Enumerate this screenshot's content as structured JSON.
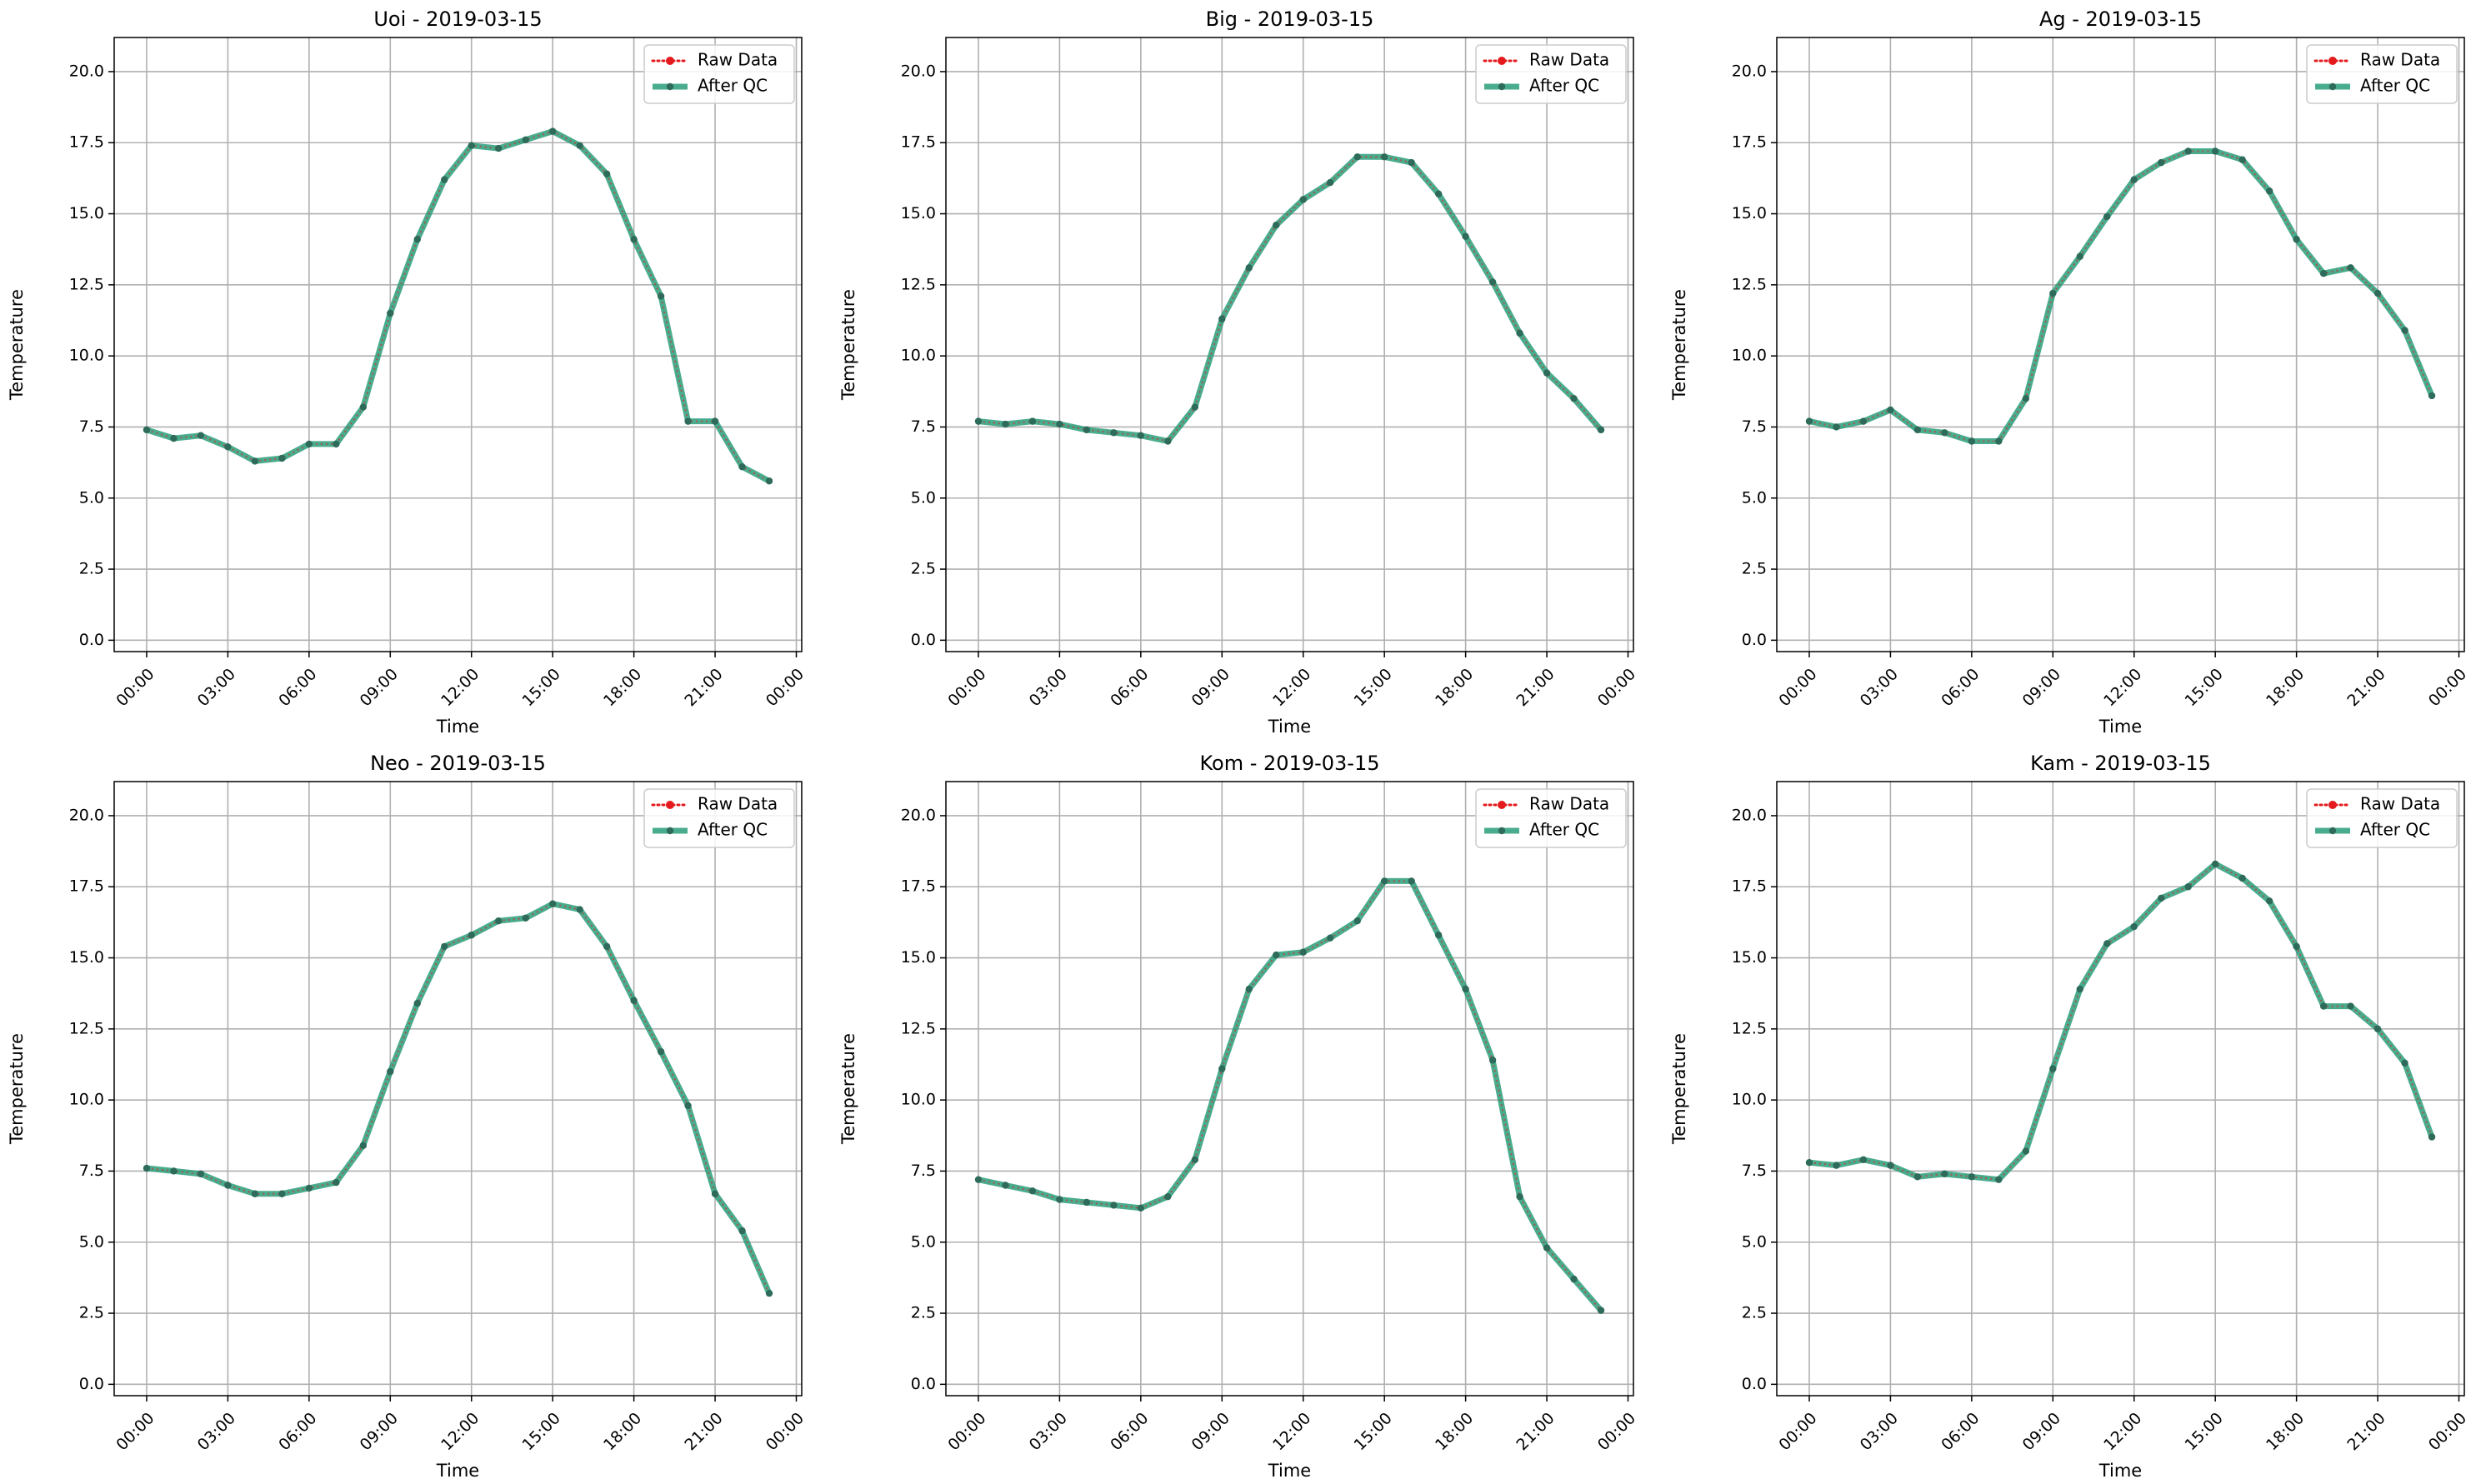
{
  "figure": {
    "x_label": "Time",
    "y_label": "Temperature",
    "legend": [
      "Raw Data",
      "After QC"
    ]
  },
  "colors": {
    "raw": "#e41a1c",
    "qc": "#2a9d7a",
    "marker": "#2e6b5a",
    "grid": "#b0b0b0"
  },
  "chart_data": [
    {
      "type": "line",
      "title": "Uoi - 2019-03-15",
      "xlabel": "Time",
      "ylabel": "Temperature",
      "xlim": [
        -1.2,
        24.2
      ],
      "ylim": [
        -0.4,
        21.2
      ],
      "x_ticks": [
        "00:00",
        "03:00",
        "06:00",
        "09:00",
        "12:00",
        "15:00",
        "18:00",
        "21:00",
        "00:00"
      ],
      "y_ticks": [
        "0.0",
        "2.5",
        "5.0",
        "7.5",
        "10.0",
        "12.5",
        "15.0",
        "17.5",
        "20.0"
      ],
      "legend_position": "top-right",
      "grid": true,
      "x": [
        "00:00",
        "01:00",
        "02:00",
        "03:00",
        "04:00",
        "05:00",
        "06:00",
        "07:00",
        "08:00",
        "09:00",
        "10:00",
        "11:00",
        "12:00",
        "13:00",
        "14:00",
        "15:00",
        "16:00",
        "17:00",
        "18:00",
        "19:00",
        "20:00",
        "21:00",
        "22:00",
        "23:00"
      ],
      "series": [
        {
          "name": "Raw Data",
          "values": [
            7.4,
            7.1,
            7.2,
            6.8,
            6.3,
            6.4,
            6.9,
            6.9,
            8.2,
            11.5,
            14.1,
            16.2,
            17.4,
            17.3,
            17.6,
            17.9,
            17.4,
            16.4,
            14.1,
            12.1,
            7.7,
            7.7,
            6.1,
            5.6
          ]
        },
        {
          "name": "After QC",
          "values": [
            7.4,
            7.1,
            7.2,
            6.8,
            6.3,
            6.4,
            6.9,
            6.9,
            8.2,
            11.5,
            14.1,
            16.2,
            17.4,
            17.3,
            17.6,
            17.9,
            17.4,
            16.4,
            14.1,
            12.1,
            7.7,
            7.7,
            6.1,
            5.6
          ]
        }
      ]
    },
    {
      "type": "line",
      "title": "Big - 2019-03-15",
      "xlabel": "Time",
      "ylabel": "Temperature",
      "xlim": [
        -1.2,
        24.2
      ],
      "ylim": [
        -0.4,
        21.2
      ],
      "x_ticks": [
        "00:00",
        "03:00",
        "06:00",
        "09:00",
        "12:00",
        "15:00",
        "18:00",
        "21:00",
        "00:00"
      ],
      "y_ticks": [
        "0.0",
        "2.5",
        "5.0",
        "7.5",
        "10.0",
        "12.5",
        "15.0",
        "17.5",
        "20.0"
      ],
      "legend_position": "top-right",
      "grid": true,
      "x": [
        "00:00",
        "01:00",
        "02:00",
        "03:00",
        "04:00",
        "05:00",
        "06:00",
        "07:00",
        "08:00",
        "09:00",
        "10:00",
        "11:00",
        "12:00",
        "13:00",
        "14:00",
        "15:00",
        "16:00",
        "17:00",
        "18:00",
        "19:00",
        "20:00",
        "21:00",
        "22:00",
        "23:00"
      ],
      "series": [
        {
          "name": "Raw Data",
          "values": [
            7.7,
            7.6,
            7.7,
            7.6,
            7.4,
            7.3,
            7.2,
            7.0,
            8.2,
            11.3,
            13.1,
            14.6,
            15.5,
            16.1,
            17.0,
            17.0,
            16.8,
            15.7,
            14.2,
            12.6,
            10.8,
            9.4,
            8.5,
            7.4
          ]
        },
        {
          "name": "After QC",
          "values": [
            7.7,
            7.6,
            7.7,
            7.6,
            7.4,
            7.3,
            7.2,
            7.0,
            8.2,
            11.3,
            13.1,
            14.6,
            15.5,
            16.1,
            17.0,
            17.0,
            16.8,
            15.7,
            14.2,
            12.6,
            10.8,
            9.4,
            8.5,
            7.4
          ]
        }
      ]
    },
    {
      "type": "line",
      "title": "Ag - 2019-03-15",
      "xlabel": "Time",
      "ylabel": "Temperature",
      "xlim": [
        -1.2,
        24.2
      ],
      "ylim": [
        -0.4,
        21.2
      ],
      "x_ticks": [
        "00:00",
        "03:00",
        "06:00",
        "09:00",
        "12:00",
        "15:00",
        "18:00",
        "21:00",
        "00:00"
      ],
      "y_ticks": [
        "0.0",
        "2.5",
        "5.0",
        "7.5",
        "10.0",
        "12.5",
        "15.0",
        "17.5",
        "20.0"
      ],
      "legend_position": "top-right",
      "grid": true,
      "x": [
        "00:00",
        "01:00",
        "02:00",
        "03:00",
        "04:00",
        "05:00",
        "06:00",
        "07:00",
        "08:00",
        "09:00",
        "10:00",
        "11:00",
        "12:00",
        "13:00",
        "14:00",
        "15:00",
        "16:00",
        "17:00",
        "18:00",
        "19:00",
        "20:00",
        "21:00",
        "22:00",
        "23:00"
      ],
      "series": [
        {
          "name": "Raw Data",
          "values": [
            7.7,
            7.5,
            7.7,
            8.1,
            7.4,
            7.3,
            7.0,
            7.0,
            8.5,
            12.2,
            13.5,
            14.9,
            16.2,
            16.8,
            17.2,
            17.2,
            16.9,
            15.8,
            14.1,
            12.9,
            13.1,
            12.2,
            10.9,
            8.6
          ]
        },
        {
          "name": "After QC",
          "values": [
            7.7,
            7.5,
            7.7,
            8.1,
            7.4,
            7.3,
            7.0,
            7.0,
            8.5,
            12.2,
            13.5,
            14.9,
            16.2,
            16.8,
            17.2,
            17.2,
            16.9,
            15.8,
            14.1,
            12.9,
            13.1,
            12.2,
            10.9,
            8.6
          ]
        }
      ]
    },
    {
      "type": "line",
      "title": "Neo - 2019-03-15",
      "xlabel": "Time",
      "ylabel": "Temperature",
      "xlim": [
        -1.2,
        24.2
      ],
      "ylim": [
        -0.4,
        21.2
      ],
      "x_ticks": [
        "00:00",
        "03:00",
        "06:00",
        "09:00",
        "12:00",
        "15:00",
        "18:00",
        "21:00",
        "00:00"
      ],
      "y_ticks": [
        "0.0",
        "2.5",
        "5.0",
        "7.5",
        "10.0",
        "12.5",
        "15.0",
        "17.5",
        "20.0"
      ],
      "legend_position": "top-right",
      "grid": true,
      "x": [
        "00:00",
        "01:00",
        "02:00",
        "03:00",
        "04:00",
        "05:00",
        "06:00",
        "07:00",
        "08:00",
        "09:00",
        "10:00",
        "11:00",
        "12:00",
        "13:00",
        "14:00",
        "15:00",
        "16:00",
        "17:00",
        "18:00",
        "19:00",
        "20:00",
        "21:00",
        "22:00",
        "23:00"
      ],
      "series": [
        {
          "name": "Raw Data",
          "values": [
            7.6,
            7.5,
            7.4,
            7.0,
            6.7,
            6.7,
            6.9,
            7.1,
            8.4,
            11.0,
            13.4,
            15.4,
            15.8,
            16.3,
            16.4,
            16.9,
            16.7,
            15.4,
            13.5,
            11.7,
            9.8,
            6.7,
            5.4,
            3.2
          ]
        },
        {
          "name": "After QC",
          "values": [
            7.6,
            7.5,
            7.4,
            7.0,
            6.7,
            6.7,
            6.9,
            7.1,
            8.4,
            11.0,
            13.4,
            15.4,
            15.8,
            16.3,
            16.4,
            16.9,
            16.7,
            15.4,
            13.5,
            11.7,
            9.8,
            6.7,
            5.4,
            3.2
          ]
        }
      ]
    },
    {
      "type": "line",
      "title": "Kom - 2019-03-15",
      "xlabel": "Time",
      "ylabel": "Temperature",
      "xlim": [
        -1.2,
        24.2
      ],
      "ylim": [
        -0.4,
        21.2
      ],
      "x_ticks": [
        "00:00",
        "03:00",
        "06:00",
        "09:00",
        "12:00",
        "15:00",
        "18:00",
        "21:00",
        "00:00"
      ],
      "y_ticks": [
        "0.0",
        "2.5",
        "5.0",
        "7.5",
        "10.0",
        "12.5",
        "15.0",
        "17.5",
        "20.0"
      ],
      "legend_position": "top-right",
      "grid": true,
      "x": [
        "00:00",
        "01:00",
        "02:00",
        "03:00",
        "04:00",
        "05:00",
        "06:00",
        "07:00",
        "08:00",
        "09:00",
        "10:00",
        "11:00",
        "12:00",
        "13:00",
        "14:00",
        "15:00",
        "16:00",
        "17:00",
        "18:00",
        "19:00",
        "20:00",
        "21:00",
        "22:00",
        "23:00"
      ],
      "series": [
        {
          "name": "Raw Data",
          "values": [
            7.2,
            7.0,
            6.8,
            6.5,
            6.4,
            6.3,
            6.2,
            6.6,
            7.9,
            11.1,
            13.9,
            15.1,
            15.2,
            15.7,
            16.3,
            17.7,
            17.7,
            15.8,
            13.9,
            11.4,
            6.6,
            4.8,
            3.7,
            2.6
          ]
        },
        {
          "name": "After QC",
          "values": [
            7.2,
            7.0,
            6.8,
            6.5,
            6.4,
            6.3,
            6.2,
            6.6,
            7.9,
            11.1,
            13.9,
            15.1,
            15.2,
            15.7,
            16.3,
            17.7,
            17.7,
            15.8,
            13.9,
            11.4,
            6.6,
            4.8,
            3.7,
            2.6
          ]
        }
      ]
    },
    {
      "type": "line",
      "title": "Kam - 2019-03-15",
      "xlabel": "Time",
      "ylabel": "Temperature",
      "xlim": [
        -1.2,
        24.2
      ],
      "ylim": [
        -0.4,
        21.2
      ],
      "x_ticks": [
        "00:00",
        "03:00",
        "06:00",
        "09:00",
        "12:00",
        "15:00",
        "18:00",
        "21:00",
        "00:00"
      ],
      "y_ticks": [
        "0.0",
        "2.5",
        "5.0",
        "7.5",
        "10.0",
        "12.5",
        "15.0",
        "17.5",
        "20.0"
      ],
      "legend_position": "top-right",
      "grid": true,
      "x": [
        "00:00",
        "01:00",
        "02:00",
        "03:00",
        "04:00",
        "05:00",
        "06:00",
        "07:00",
        "08:00",
        "09:00",
        "10:00",
        "11:00",
        "12:00",
        "13:00",
        "14:00",
        "15:00",
        "16:00",
        "17:00",
        "18:00",
        "19:00",
        "20:00",
        "21:00",
        "22:00",
        "23:00"
      ],
      "series": [
        {
          "name": "Raw Data",
          "values": [
            7.8,
            7.7,
            7.9,
            7.7,
            7.3,
            7.4,
            7.3,
            7.2,
            8.2,
            11.1,
            13.9,
            15.5,
            16.1,
            17.1,
            17.5,
            18.3,
            17.8,
            17.0,
            15.4,
            13.3,
            13.3,
            12.5,
            11.3,
            8.7
          ]
        },
        {
          "name": "After QC",
          "values": [
            7.8,
            7.7,
            7.9,
            7.7,
            7.3,
            7.4,
            7.3,
            7.2,
            8.2,
            11.1,
            13.9,
            15.5,
            16.1,
            17.1,
            17.5,
            18.3,
            17.8,
            17.0,
            15.4,
            13.3,
            13.3,
            12.5,
            11.3,
            8.7
          ]
        }
      ]
    }
  ]
}
